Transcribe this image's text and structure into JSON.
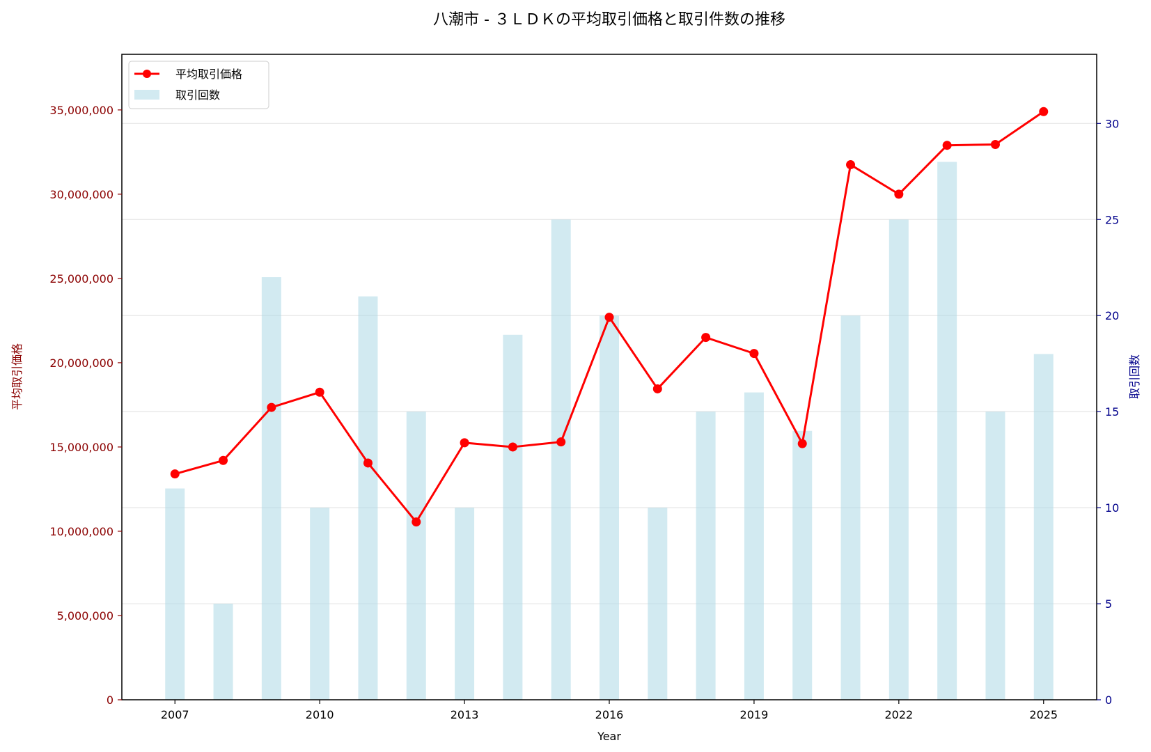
{
  "chart_data": {
    "type": "bar+line",
    "title": "八潮市 - ３ＬＤＫの平均取引価格と取引件数の推移",
    "xlabel": "Year",
    "ylabel_left": "平均取引価格",
    "ylabel_right": "取引回数",
    "x": [
      2007,
      2008,
      2009,
      2010,
      2011,
      2012,
      2013,
      2014,
      2015,
      2016,
      2017,
      2018,
      2019,
      2020,
      2021,
      2022,
      2023,
      2024,
      2025
    ],
    "x_ticks": [
      "2007",
      "2010",
      "2013",
      "2016",
      "2019",
      "2022",
      "2025"
    ],
    "x_tick_values": [
      2007,
      2010,
      2013,
      2016,
      2019,
      2022,
      2025
    ],
    "xlim": [
      2005.9,
      2026.1
    ],
    "ylim_left": [
      0,
      38300000
    ],
    "ylim_right": [
      0,
      33.6
    ],
    "y_ticks_left": [
      "0",
      "5,000,000",
      "10,000,000",
      "15,000,000",
      "20,000,000",
      "25,000,000",
      "30,000,000",
      "35,000,000"
    ],
    "y_tick_values_left": [
      0,
      5000000,
      10000000,
      15000000,
      20000000,
      25000000,
      30000000,
      35000000
    ],
    "y_ticks_right": [
      "0",
      "5",
      "10",
      "15",
      "20",
      "25",
      "30"
    ],
    "y_tick_values_right": [
      0,
      5,
      10,
      15,
      20,
      25,
      30
    ],
    "grid": true,
    "legend_position": "top-left",
    "series": [
      {
        "name": "平均取引価格",
        "type": "line",
        "axis": "left",
        "color": "#ff0000",
        "values": [
          13400000,
          14200000,
          17350000,
          18250000,
          14050000,
          10550000,
          15250000,
          15000000,
          15300000,
          22700000,
          18450000,
          21500000,
          20550000,
          15200000,
          31750000,
          30000000,
          32900000,
          32950000,
          34900000
        ]
      },
      {
        "name": "取引回数",
        "type": "bar",
        "axis": "right",
        "color": "#add8e6",
        "values": [
          11,
          5,
          22,
          10,
          21,
          15,
          10,
          19,
          25,
          20,
          10,
          15,
          16,
          14,
          20,
          25,
          28,
          15,
          18
        ]
      }
    ]
  }
}
